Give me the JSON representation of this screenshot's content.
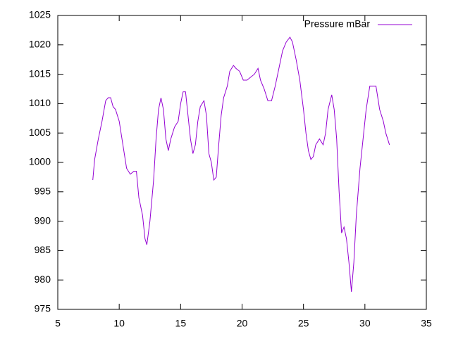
{
  "chart_data": {
    "type": "line",
    "x": [
      7.85,
      8.0,
      8.3,
      8.6,
      8.9,
      9.1,
      9.3,
      9.5,
      9.7,
      10.0,
      10.3,
      10.6,
      10.9,
      11.2,
      11.4,
      11.6,
      11.9,
      12.1,
      12.25,
      12.5,
      12.8,
      13.0,
      13.2,
      13.4,
      13.6,
      13.8,
      14.0,
      14.2,
      14.5,
      14.8,
      15.0,
      15.2,
      15.4,
      15.6,
      15.8,
      16.0,
      16.2,
      16.4,
      16.6,
      16.9,
      17.1,
      17.3,
      17.5,
      17.7,
      17.9,
      18.1,
      18.3,
      18.5,
      18.8,
      19.0,
      19.3,
      19.5,
      19.8,
      20.1,
      20.4,
      20.7,
      21.0,
      21.3,
      21.5,
      21.8,
      22.1,
      22.4,
      22.7,
      23.0,
      23.3,
      23.6,
      23.9,
      24.1,
      24.4,
      24.7,
      25.0,
      25.2,
      25.4,
      25.6,
      25.8,
      26.0,
      26.3,
      26.6,
      26.8,
      27.0,
      27.3,
      27.5,
      27.7,
      27.9,
      28.1,
      28.3,
      28.5,
      28.7,
      28.9,
      29.1,
      29.3,
      29.6,
      29.9,
      30.1,
      30.4,
      30.7,
      30.9,
      31.2,
      31.5,
      31.7,
      32.0
    ],
    "series": [
      {
        "name": "Pressure mBar",
        "color": "#9400d3",
        "values": [
          997,
          1000.5,
          1004,
          1007,
          1010.5,
          1011,
          1011,
          1009.5,
          1009,
          1007,
          1003,
          999,
          998,
          998.5,
          998.5,
          994,
          991,
          987,
          986,
          990,
          997,
          1004,
          1009,
          1011,
          1009,
          1004,
          1002,
          1004,
          1006,
          1007,
          1010,
          1012,
          1012,
          1008,
          1004,
          1001.5,
          1003,
          1007,
          1009.5,
          1010.5,
          1008,
          1001.5,
          1000,
          997,
          997.5,
          1003,
          1008,
          1011,
          1013,
          1015.5,
          1016.5,
          1016,
          1015.5,
          1014,
          1014,
          1014.5,
          1015,
          1016,
          1014,
          1012.5,
          1010.5,
          1010.5,
          1013,
          1016,
          1019,
          1020.5,
          1021.3,
          1020.5,
          1017.5,
          1014,
          1009,
          1005,
          1002,
          1000.5,
          1001,
          1003,
          1004,
          1003,
          1005,
          1009,
          1011.5,
          1009,
          1004,
          995,
          988,
          989,
          987,
          983,
          978,
          983,
          991,
          999,
          1005,
          1009,
          1013,
          1013,
          1013,
          1009,
          1007,
          1005,
          1003
        ]
      }
    ],
    "xlim": [
      5,
      35
    ],
    "xticks": [
      5,
      10,
      15,
      20,
      25,
      30,
      35
    ],
    "ylim": [
      975,
      1025
    ],
    "yticks": [
      975,
      980,
      985,
      990,
      995,
      1000,
      1005,
      1010,
      1015,
      1020,
      1025
    ],
    "legend": "top-right"
  }
}
